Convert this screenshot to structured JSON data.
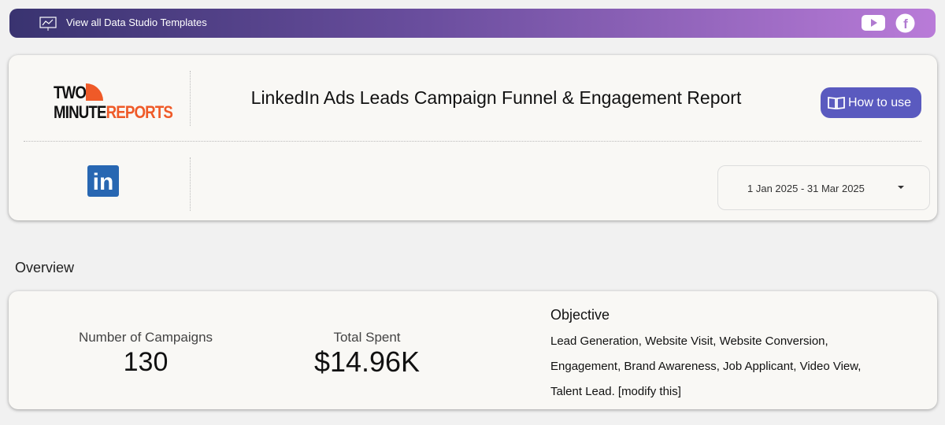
{
  "topbar": {
    "link": "View all Data Studio Templates"
  },
  "header": {
    "logo": {
      "line1": "TWO",
      "line2a": "MINUTE",
      "line2b": "REPORTS"
    },
    "title": "LinkedIn Ads Leads Campaign Funnel & Engagement Report",
    "button": "How to use",
    "date_range": "1 Jan 2025 - 31 Mar 2025"
  },
  "overview": {
    "heading": "Overview",
    "campaigns": {
      "label": "Number of Campaigns",
      "value": "130"
    },
    "spent": {
      "label": "Total Spent",
      "value": "$14.96K"
    },
    "objective": {
      "label": "Objective",
      "text": "Lead Generation, Website Visit, Website Conversion, Engagement, Brand Awareness, Job Applicant, Video View, Talent Lead. [modify this]"
    }
  }
}
